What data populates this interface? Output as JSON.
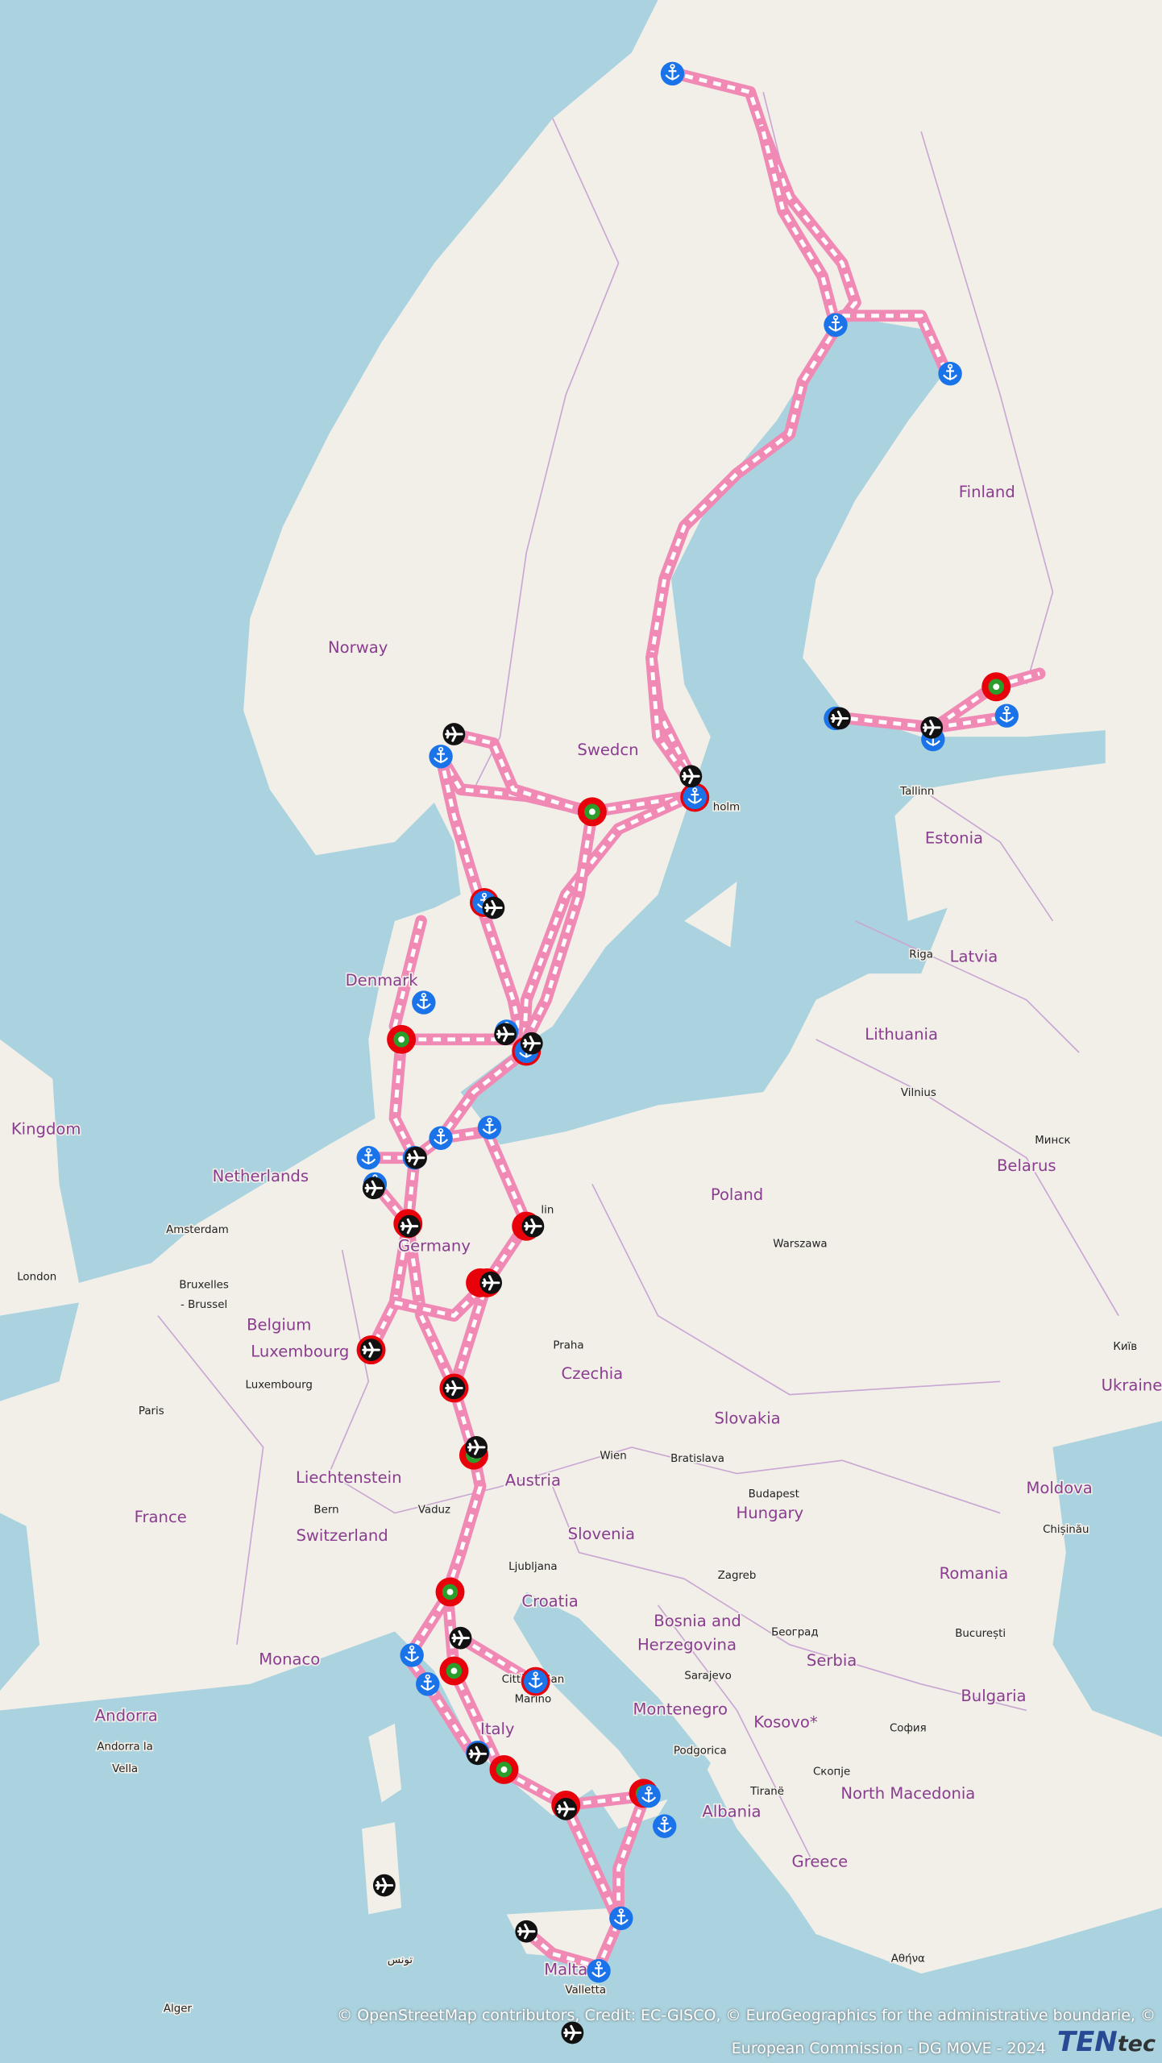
{
  "map": {
    "colors": {
      "land": "#f2efe9",
      "sea": "#aad3df",
      "border": "#c9a6d3",
      "route": "#f08ab4",
      "route_dash": "#ffffff",
      "port": "#1a73e8",
      "airport": "#111111",
      "hub_ring": "#e8000b",
      "hub_center": "#2a9d2a"
    },
    "marker_types": [
      "port-icon",
      "airport-icon",
      "rail-road-terminal-icon"
    ],
    "labels": {
      "countries": [
        "Finland",
        "Norway",
        "Swedcn",
        "Estonia",
        "Latvia",
        "Denmark",
        "Lithuania",
        "Kingdom",
        "Belarus",
        "Netherlands",
        "Poland",
        "Germany",
        "Belgium",
        "Luxembourg",
        "Czechia",
        "Ukraine",
        "Slovakia",
        "Liechtenstein",
        "Austria",
        "Moldova",
        "France",
        "Hungary",
        "Switzerland",
        "Slovenia",
        "Romania",
        "Croatia",
        "Bosnia and",
        "Herzegovina",
        "Serbia",
        "Monaco",
        "Bulgaria",
        "Montenegro",
        "Italy",
        "Kosovo*",
        "Andorra",
        "North Macedonia",
        "Albania",
        "Greece",
        "Malta"
      ],
      "cities": [
        "Tallinn",
        "Riga",
        "Vilnius",
        "Минск",
        "Amsterdam",
        "Warszawa",
        "London",
        "Bruxelles",
        "- Brussel",
        "Київ",
        "Praha",
        "Luxembourg",
        "Paris",
        "Wien",
        "Bratislava",
        "Budapest",
        "Bern",
        "Vaduz",
        "Chișinău",
        "Ljubljana",
        "Zagreb",
        "Београд",
        "București",
        "Sarajevo",
        "Città di San",
        "Marino",
        "София",
        "Andorra la",
        "Vella",
        "Podgorica",
        "Скопје",
        "Tiranë",
        "Αθήνα",
        "Alger",
        "تونس",
        "Valletta",
        "holm",
        "lin"
      ]
    }
  },
  "attribution": {
    "line1": "© OpenStreetMap contributors, Credit: EC-GISCO, © EuroGeographics for the administrative boundarie, ©",
    "line2": "European Commission - DG MOVE - 2024"
  },
  "logo": {
    "text": "TEN",
    "suffix": "tec"
  }
}
